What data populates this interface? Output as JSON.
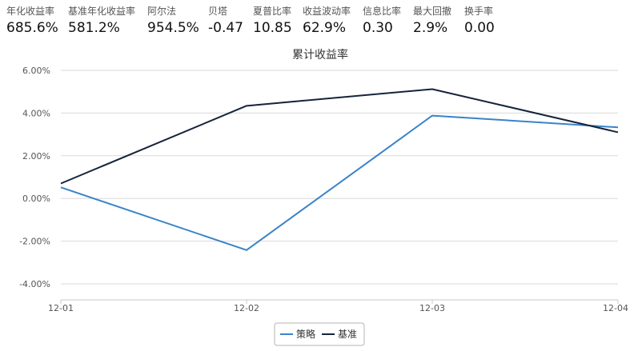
{
  "stats": [
    {
      "label": "年化收益率",
      "value": "685.6%"
    },
    {
      "label": "基准年化收益率",
      "value": "581.2%"
    },
    {
      "label": "阿尔法",
      "value": "954.5%"
    },
    {
      "label": "贝塔",
      "value": "-0.47"
    },
    {
      "label": "夏普比率",
      "value": "10.85"
    },
    {
      "label": "收益波动率",
      "value": "62.9%"
    },
    {
      "label": "信息比率",
      "value": "0.30"
    },
    {
      "label": "最大回撤",
      "value": "2.9%"
    },
    {
      "label": "换手率",
      "value": "0.00"
    }
  ],
  "chart_data": {
    "type": "line",
    "title": "累计收益率",
    "categories": [
      "12-01",
      "12-02",
      "12-03",
      "12-04"
    ],
    "y_ticks": [
      "6.00%",
      "4.00%",
      "2.00%",
      "0.00%",
      "-2.00%",
      "-4.00%"
    ],
    "ylim": [
      -4.5,
      6.0
    ],
    "series": [
      {
        "name": "策略",
        "color": "#3a83c9",
        "values": [
          0.52,
          -2.42,
          3.88,
          3.33
        ]
      },
      {
        "name": "基准",
        "color": "#15243a",
        "values": [
          0.7,
          4.34,
          5.12,
          3.1
        ]
      }
    ],
    "grid": true,
    "legend_position": "bottom-center"
  }
}
